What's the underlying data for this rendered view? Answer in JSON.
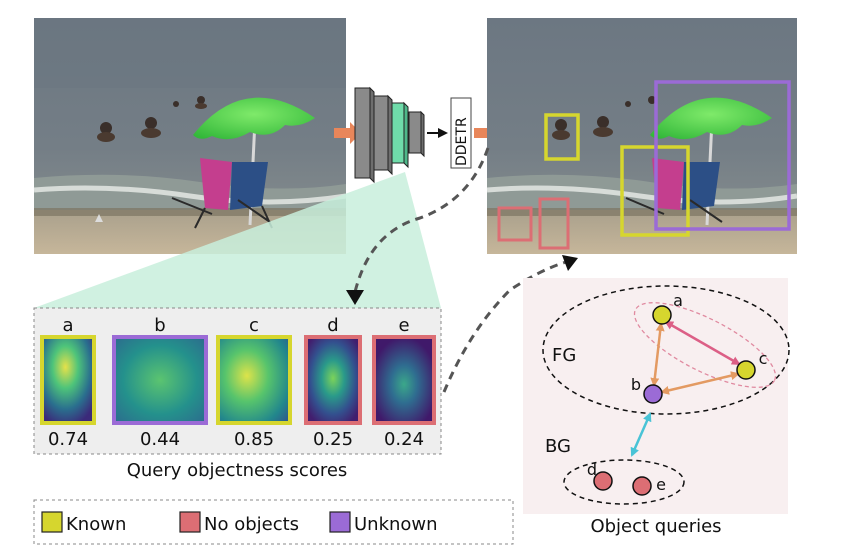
{
  "pipeline": {
    "detector_label": "DDETR"
  },
  "queries_panel": {
    "caption": "Query objectness scores",
    "queries": [
      {
        "letter": "a",
        "score": "0.74",
        "frame_color": "#d6d62e",
        "category": "Known"
      },
      {
        "letter": "b",
        "score": "0.44",
        "frame_color": "#9b6bd6",
        "category": "Unknown"
      },
      {
        "letter": "c",
        "score": "0.85",
        "frame_color": "#d6d62e",
        "category": "Known"
      },
      {
        "letter": "d",
        "score": "0.25",
        "frame_color": "#dc6e74",
        "category": "No objects"
      },
      {
        "letter": "e",
        "score": "0.24",
        "frame_color": "#dc6e74",
        "category": "No objects"
      }
    ]
  },
  "legend": {
    "items": [
      {
        "label": "Known",
        "color": "#d6d62e"
      },
      {
        "label": "No objects",
        "color": "#dc6e74"
      },
      {
        "label": "Unknown",
        "color": "#9b6bd6"
      }
    ]
  },
  "object_queries": {
    "caption": "Object queries",
    "fg_label": "FG",
    "bg_label": "BG",
    "nodes": [
      {
        "letter": "a",
        "color": "#d6d62e"
      },
      {
        "letter": "b",
        "color": "#9b6bd6"
      },
      {
        "letter": "c",
        "color": "#d6d62e"
      },
      {
        "letter": "d",
        "color": "#dc6e74"
      },
      {
        "letter": "e",
        "color": "#dc6e74"
      }
    ]
  },
  "detections": {
    "known_color": "#d6d62e",
    "unknown_color": "#9b6bd6",
    "no_object_color": "#dc6e74"
  }
}
